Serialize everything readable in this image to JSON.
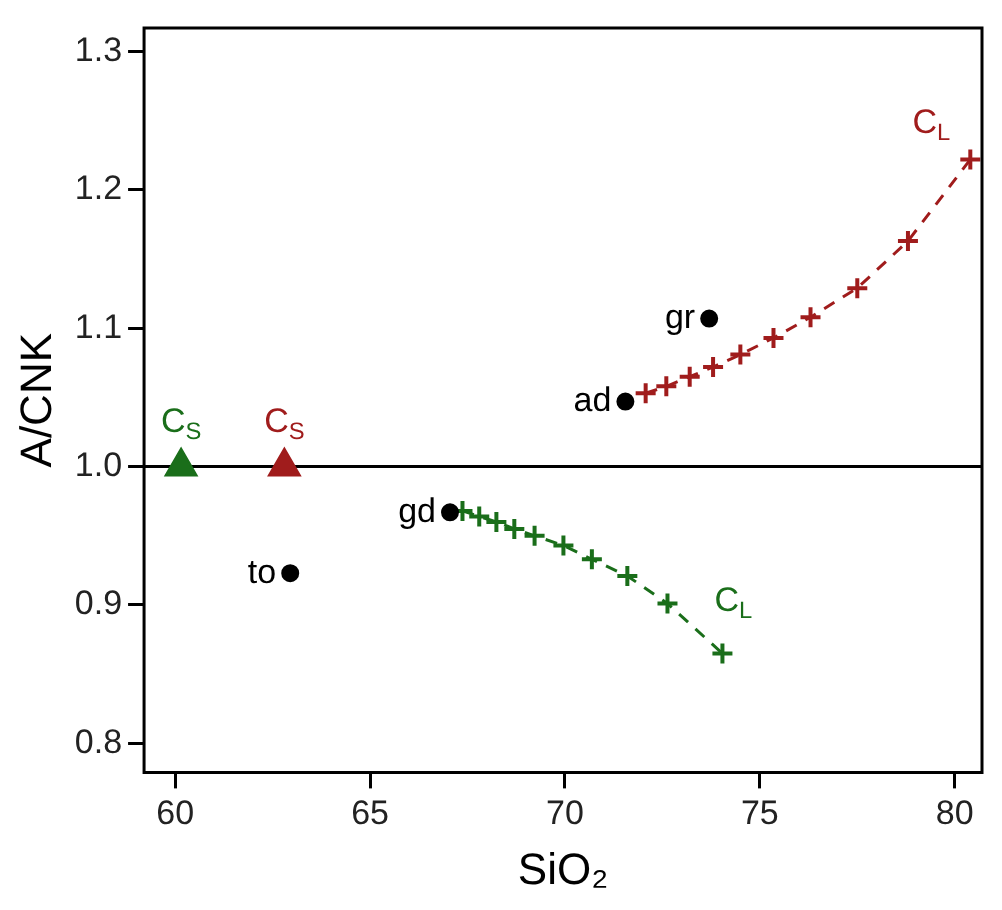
{
  "chart_data": {
    "type": "scatter",
    "xlabel": "SiO₂",
    "ylabel": "A/CNK",
    "xlim": [
      59.2,
      80.7
    ],
    "ylim": [
      0.779,
      1.317
    ],
    "xticks": [
      60,
      65,
      70,
      75,
      80
    ],
    "yticks": [
      0.8,
      0.9,
      {
        "value": 1,
        "label": "1.0"
      },
      1.1,
      1.2,
      1.3
    ],
    "grid": false,
    "legend": false,
    "series": [
      {
        "color": "#000000",
        "marker": "circle",
        "x": [
          62.95,
          67.05,
          71.55,
          73.7
        ],
        "values": [
          0.923,
          0.967,
          1.047,
          1.107
        ]
      },
      {
        "name": "C$_{S}$",
        "color": "#1a6e1a",
        "marker": "triangle",
        "x": [
          60.15
        ],
        "values": [
          1.0
        ]
      },
      {
        "name": "C$_{S}$",
        "color": "#a01c1c",
        "marker": "triangle",
        "x": [
          62.8
        ],
        "values": [
          1.0
        ]
      },
      {
        "type": "line",
        "name": "C$_{L}$",
        "color": "#a01c1c",
        "marker": "cross",
        "line_style": "dashed",
        "x": [
          72.07,
          72.6,
          73.2,
          73.8,
          74.5,
          75.35,
          76.3,
          77.5,
          78.8,
          80.4
        ],
        "values": [
          1.053,
          1.058,
          1.065,
          1.072,
          1.081,
          1.093,
          1.108,
          1.129,
          1.163,
          1.222
        ]
      },
      {
        "type": "line",
        "name": "C$_{L}$",
        "color": "#1a6e1a",
        "marker": "cross",
        "line_style": "dashed",
        "x": [
          67.37,
          67.8,
          68.24,
          68.7,
          69.22,
          69.96,
          70.69,
          71.6,
          72.63,
          74.04
        ],
        "values": [
          0.968,
          0.964,
          0.96,
          0.955,
          0.95,
          0.943,
          0.933,
          0.921,
          0.901,
          0.865
        ]
      }
    ],
    "ref_lines": [
      {
        "axis": "y",
        "value": 1.0,
        "color": "#000000"
      }
    ],
    "annotations": [
      {
        "text": "to",
        "x": 62.95,
        "y": 0.923
      },
      {
        "text": "gd",
        "x": 67.05,
        "y": 0.967
      },
      {
        "text": "ad",
        "x": 71.55,
        "y": 1.047
      },
      {
        "text": "gr",
        "x": 73.7,
        "y": 1.107
      }
    ]
  }
}
